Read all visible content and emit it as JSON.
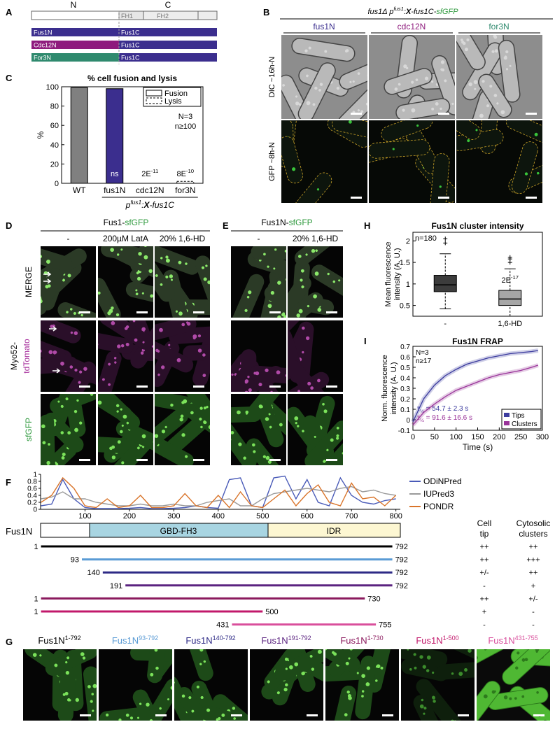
{
  "A": {
    "label": "A",
    "n_term": "N",
    "c_term": "C",
    "fh1": "FH1",
    "fh2": "FH2",
    "c_color": "#3b2e8e",
    "constructs": [
      {
        "n": "Fus1N",
        "c": "Fus1C",
        "color": "#3b2e8e"
      },
      {
        "n": "Cdc12N",
        "c": "Fus1C",
        "color": "#8e1b7d"
      },
      {
        "n": "For3N",
        "c": "Fus1C",
        "color": "#2f8a6e"
      }
    ]
  },
  "B": {
    "label": "B",
    "title": [
      {
        "text": "fus1Δ  p"
      },
      {
        "text": "fus1",
        "sup": true
      },
      {
        "text": ":"
      },
      {
        "text": "X",
        "bold": true
      },
      {
        "text": "-fus1C-"
      },
      {
        "text": "sfGFP",
        "color": "#2f9a3e"
      }
    ],
    "columns": [
      {
        "text": "fus1N",
        "color": "#3b2e8e"
      },
      {
        "text": "cdc12N",
        "color": "#8e1b7d"
      },
      {
        "text": "for3N",
        "color": "#2f8a6e"
      }
    ],
    "rows": [
      "DIC ~16h-N",
      "GFP ~8h-N"
    ]
  },
  "C": {
    "label": "C",
    "title": "% cell fusion and lysis",
    "y_label": "%",
    "categories": [
      "WT",
      "fus1N",
      "cdc12N",
      "for3N"
    ],
    "fusion": [
      99,
      98,
      0,
      0
    ],
    "lysis": [
      0,
      0,
      0,
      2
    ],
    "colors": [
      "#808080",
      "#3b2e8e",
      "#3b2e8e",
      "#3b2e8e"
    ],
    "ylim": [
      0,
      100
    ],
    "yticks": [
      0,
      20,
      40,
      60,
      80,
      100
    ],
    "legend": [
      "Fusion",
      "Lysis"
    ],
    "notes": [
      "N=3",
      "n≥100"
    ],
    "annotations": [
      null,
      [
        {
          "text": "ns",
          "color": "#ffffff"
        }
      ],
      [
        {
          "text": "2E"
        },
        {
          "text": "-11",
          "sup": true
        }
      ],
      [
        {
          "text": "8E"
        },
        {
          "text": "-10",
          "sup": true
        }
      ]
    ],
    "group_label": [
      {
        "text": "p",
        "italic": true
      },
      {
        "text": "fus1",
        "sup": true,
        "italic": true
      },
      {
        "text": ":",
        "italic": true
      },
      {
        "text": "X",
        "bold": true,
        "italic": true
      },
      {
        "text": "-fus1C",
        "italic": true
      }
    ]
  },
  "D": {
    "label": "D",
    "header": [
      {
        "text": "Fus1-"
      },
      {
        "text": "sfGFP",
        "color": "#2f9a3e"
      }
    ],
    "columns": [
      "-",
      "200µM LatA",
      "20% 1,6-HD"
    ],
    "row_labels": {
      "merge": "MERGE",
      "myo52": "Myo52-",
      "tdtomato": "tdTomato",
      "sfgfp": "sfGFP"
    },
    "tdtomato_color": "#a8329e",
    "sfgfp_color": "#2f9a3e"
  },
  "E": {
    "label": "E",
    "header": [
      {
        "text": "Fus1N-"
      },
      {
        "text": "sfGFP",
        "color": "#2f9a3e"
      }
    ],
    "columns": [
      "-",
      "20% 1,6-HD"
    ]
  },
  "H": {
    "label": "H",
    "title": "Fus1N cluster intensity",
    "y_label": [
      "Mean fluorescence",
      "intensity (A. U.)"
    ],
    "categories": [
      "-",
      "1,6-HD"
    ],
    "colors": [
      "#3c3c3c",
      "#a6a6a6"
    ],
    "boxes": [
      {
        "min": 0.42,
        "q1": 0.82,
        "median": 0.98,
        "q3": 1.2,
        "max": 1.7,
        "outliers": [
          1.95,
          2.05
        ]
      },
      {
        "min": 0.25,
        "q1": 0.5,
        "median": 0.65,
        "q3": 0.85,
        "max": 1.35,
        "outliers": [
          1.5,
          1.58,
          1.62
        ]
      }
    ],
    "ylim": [
      0.25,
      2.2
    ],
    "yticks": [
      0.5,
      1,
      1.5,
      2
    ],
    "note": "n=180",
    "annotation": [
      {
        "text": "2E"
      },
      {
        "text": "-17",
        "sup": true
      }
    ]
  },
  "I": {
    "label": "I",
    "title": "Fus1N FRAP",
    "x_label": "Time (s)",
    "y_label": [
      "Norm. fluorescence",
      "intensity (A. U.)"
    ],
    "x": [
      0,
      25,
      50,
      75,
      100,
      125,
      150,
      175,
      200,
      225,
      250,
      275,
      290
    ],
    "series": [
      {
        "name": "Tips",
        "color": "#3b3b9e",
        "values": [
          -0.02,
          0.2,
          0.33,
          0.42,
          0.48,
          0.53,
          0.56,
          0.59,
          0.61,
          0.63,
          0.64,
          0.65,
          0.66
        ]
      },
      {
        "name": "Clusters",
        "color": "#993399",
        "values": [
          -0.05,
          0.07,
          0.15,
          0.22,
          0.28,
          0.32,
          0.36,
          0.4,
          0.43,
          0.45,
          0.47,
          0.5,
          0.52
        ]
      }
    ],
    "xlim": [
      0,
      300
    ],
    "xticks": [
      0,
      50,
      100,
      150,
      200,
      250,
      300
    ],
    "ylim": [
      -0.1,
      0.7
    ],
    "yticks": [
      -0.1,
      0,
      0.1,
      0.2,
      0.3,
      0.4,
      0.5,
      0.6,
      0.7
    ],
    "notes": [
      "N=3",
      "n≥17"
    ],
    "half_times": [
      [
        {
          "text": "τ"
        },
        {
          "text": "½",
          "sub": true
        },
        {
          "text": " = 54.7 ± 2.3 s"
        }
      ],
      [
        {
          "text": "τ"
        },
        {
          "text": "½",
          "sub": true
        },
        {
          "text": " = 91.6 ± 16.6 s"
        }
      ]
    ]
  },
  "F": {
    "label": "F",
    "protein": "Fus1N",
    "x": [
      1,
      25,
      50,
      75,
      100,
      125,
      150,
      175,
      200,
      225,
      250,
      275,
      300,
      325,
      350,
      375,
      400,
      425,
      450,
      475,
      500,
      525,
      550,
      575,
      600,
      625,
      650,
      675,
      700,
      725,
      750,
      775,
      800
    ],
    "series": [
      {
        "name": "ODiNPred",
        "color": "#4a5bb8",
        "values": [
          0.1,
          0.15,
          0.85,
          0.3,
          0.05,
          0.02,
          0.02,
          0.02,
          0.03,
          0.05,
          0.02,
          0.02,
          0.03,
          0.05,
          0.1,
          0.05,
          0.03,
          0.85,
          0.9,
          0.1,
          0.05,
          0.9,
          0.95,
          0.3,
          0.85,
          0.2,
          0.1,
          0.9,
          0.4,
          0.2,
          0.15,
          0.25,
          0.3
        ]
      },
      {
        "name": "IUPred3",
        "color": "#9a9a9a",
        "values": [
          0.3,
          0.35,
          0.5,
          0.3,
          0.3,
          0.2,
          0.15,
          0.1,
          0.1,
          0.15,
          0.1,
          0.1,
          0.15,
          0.1,
          0.1,
          0.2,
          0.25,
          0.3,
          0.1,
          0.1,
          0.3,
          0.45,
          0.5,
          0.55,
          0.6,
          0.55,
          0.5,
          0.6,
          0.65,
          0.5,
          0.55,
          0.45,
          0.4
        ]
      },
      {
        "name": "PONDR",
        "color": "#d9742a",
        "values": [
          0.2,
          0.4,
          0.9,
          0.6,
          0.1,
          0.05,
          0.3,
          0.05,
          0.1,
          0.4,
          0.05,
          0.05,
          0.1,
          0.45,
          0.1,
          0.05,
          0.4,
          0.05,
          0.5,
          0.1,
          0.05,
          0.3,
          0.55,
          0.1,
          0.45,
          0.7,
          0.2,
          0.1,
          0.75,
          0.3,
          0.35,
          0.1,
          0.4
        ]
      }
    ],
    "xlim": [
      0,
      810
    ],
    "xticks": [
      100,
      200,
      300,
      400,
      500,
      600,
      700,
      800
    ],
    "ylim": [
      0,
      1
    ],
    "yticks": [
      0,
      0.2,
      0.4,
      0.6,
      0.8,
      1
    ],
    "domains": [
      "GBD-FH3",
      "IDR"
    ],
    "domain_colors": [
      "#a8d5e2",
      "#fdf7d2"
    ],
    "table_headers": [
      [
        "Cell",
        "tip"
      ],
      [
        "Cytosolic",
        "clusters"
      ]
    ],
    "constructs": [
      {
        "start": 1,
        "end": 792,
        "color": "#000000",
        "tip": "++",
        "clusters": "++"
      },
      {
        "start": 93,
        "end": 792,
        "color": "#5a9bd5",
        "tip": "++",
        "clusters": "+++"
      },
      {
        "start": 140,
        "end": 792,
        "color": "#2e2a86",
        "tip": "+/-",
        "clusters": "++"
      },
      {
        "start": 191,
        "end": 792,
        "color": "#5b2380",
        "tip": "-",
        "clusters": "+"
      },
      {
        "start": 1,
        "end": 730,
        "color": "#8b1a5e",
        "tip": "++",
        "clusters": "+/-"
      },
      {
        "start": 1,
        "end": 500,
        "color": "#c2186b",
        "tip": "+",
        "clusters": "-"
      },
      {
        "start": 431,
        "end": 755,
        "color": "#d94f9c",
        "tip": "-",
        "clusters": "-"
      }
    ]
  },
  "G": {
    "label": "G",
    "panels": [
      {
        "name": "Fus1N",
        "range": "1-792",
        "color": "#000000"
      },
      {
        "name": "Fus1N",
        "range": "93-792",
        "color": "#5a9bd5"
      },
      {
        "name": "Fus1N",
        "range": "140-792",
        "color": "#2e2a86"
      },
      {
        "name": "Fus1N",
        "range": "191-792",
        "color": "#5b2380"
      },
      {
        "name": "Fus1N",
        "range": "1-730",
        "color": "#8b1a5e"
      },
      {
        "name": "Fus1N",
        "range": "1-500",
        "color": "#c2186b"
      },
      {
        "name": "Fus1N",
        "range": "431-755",
        "color": "#d94f9c"
      }
    ]
  }
}
